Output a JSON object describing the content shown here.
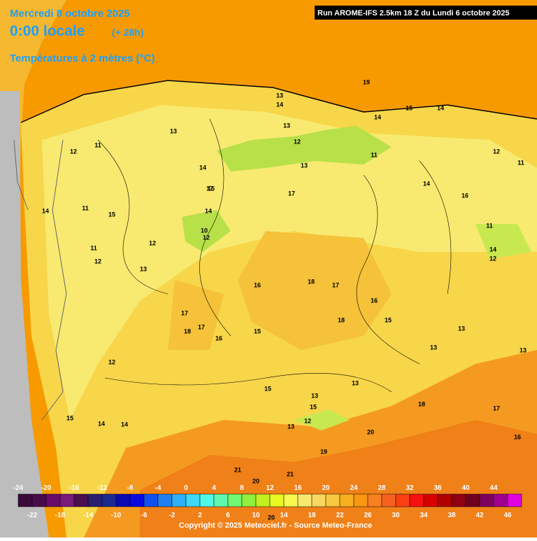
{
  "header": {
    "date": "Mercredi 8 octobre 2025",
    "time": "0:00 locale",
    "offset": "(+ 28h)",
    "variable": "Températures à 2 mètres (°C)",
    "run": "Run AROME-IFS 2.5km 18 Z du Lundi 6 octobre 2025"
  },
  "scale": {
    "top_labels": [
      "-24",
      "-20",
      "-16",
      "-12",
      "-8",
      "-4",
      "0",
      "4",
      "8",
      "12",
      "16",
      "20",
      "24",
      "28",
      "32",
      "36",
      "40",
      "44"
    ],
    "bottom_labels": [
      "-22",
      "-18",
      "-14",
      "-10",
      "-6",
      "-2",
      "2",
      "6",
      "10",
      "14",
      "18",
      "22",
      "26",
      "30",
      "34",
      "38",
      "42",
      "46"
    ],
    "colors": [
      "#3a0a3a",
      "#4a0a4a",
      "#6a0a6a",
      "#7a1a7a",
      "#4a1050",
      "#2a2070",
      "#1a2a90",
      "#0a0ab0",
      "#0a0ae0",
      "#1050f0",
      "#2080f0",
      "#30b0f8",
      "#40d8f8",
      "#50f8e8",
      "#60f8b0",
      "#70f870",
      "#90f040",
      "#c0f020",
      "#e8f820",
      "#f8f850",
      "#f8e870",
      "#f8d860",
      "#f8c840",
      "#f8b020",
      "#f89810",
      "#f88020",
      "#f86020",
      "#f84010",
      "#f81010",
      "#d80000",
      "#b00000",
      "#900010",
      "#700020",
      "#800060",
      "#a00090",
      "#e000e0"
    ]
  },
  "contour_labels": [
    "19",
    "13",
    "14",
    "14",
    "15",
    "14",
    "13",
    "12",
    "11",
    "13",
    "14",
    "11",
    "12",
    "13",
    "12",
    "11",
    "14",
    "16",
    "17",
    "15",
    "14",
    "10",
    "12",
    "15",
    "11",
    "12",
    "13",
    "11",
    "12",
    "14",
    "16",
    "18",
    "17",
    "16",
    "17",
    "18",
    "18",
    "15",
    "17",
    "16",
    "15",
    "13",
    "14",
    "12",
    "14",
    "15",
    "14",
    "15",
    "18",
    "17",
    "16",
    "13",
    "19",
    "20",
    "21",
    "20",
    "21",
    "20",
    "15",
    "13",
    "12",
    "13",
    "13",
    "11",
    "12",
    "13",
    "17"
  ],
  "footer": "Copyright © 2025 Meteociel.fr - Source Meteo-France"
}
